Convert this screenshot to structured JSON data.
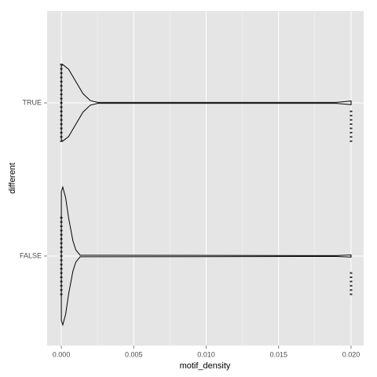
{
  "chart_data": {
    "type": "violin",
    "x_label": "motif_density",
    "y_label": "different",
    "xlim": [
      -0.00098,
      0.02087
    ],
    "xticks": [
      {
        "value": 0,
        "label": "0.000"
      },
      {
        "value": 0.005,
        "label": "0.005"
      },
      {
        "value": 0.01,
        "label": "0.010"
      },
      {
        "value": 0.015,
        "label": "0.015"
      },
      {
        "value": 0.02,
        "label": "0.020"
      }
    ],
    "x_minor_grid": [
      0.0025,
      0.0075,
      0.0125,
      0.0175
    ],
    "ylim": [
      0.415,
      2.6
    ],
    "panel_color": "#e5e5e5",
    "grid_color": "#ffffff",
    "line_color": "#000000",
    "point_color": "#333333",
    "series": [
      {
        "name": "FALSE",
        "x": [
          0,
          0.0001,
          0.0003,
          0.0005,
          0.0008,
          0.001,
          0.0013,
          0.019,
          0.0198,
          0.02
        ],
        "width": [
          0.42,
          0.45,
          0.38,
          0.25,
          0.1,
          0.04,
          0.005,
          0.003,
          0.006,
          0.007
        ],
        "points": [
          0,
          0,
          0,
          0,
          0,
          0,
          0,
          0,
          0,
          0,
          0,
          0,
          0,
          0,
          0,
          0,
          0,
          0,
          0,
          0,
          0.02,
          0.02,
          0.02,
          0.02,
          0.02,
          0.02
        ]
      },
      {
        "name": "TRUE",
        "x": [
          0,
          0.0001,
          0.0005,
          0.001,
          0.0015,
          0.002,
          0.0025,
          0.019,
          0.0198,
          0.02
        ],
        "width": [
          0.24,
          0.25,
          0.22,
          0.14,
          0.06,
          0.015,
          0.003,
          0.003,
          0.01,
          0.012
        ],
        "points": [
          0,
          0,
          0,
          0,
          0,
          0,
          0,
          0,
          0,
          0,
          0,
          0,
          0,
          0,
          0,
          0,
          0,
          0,
          0,
          0,
          0.02,
          0.02,
          0.02,
          0.02,
          0.02,
          0.02,
          0.02,
          0.02
        ]
      }
    ]
  }
}
